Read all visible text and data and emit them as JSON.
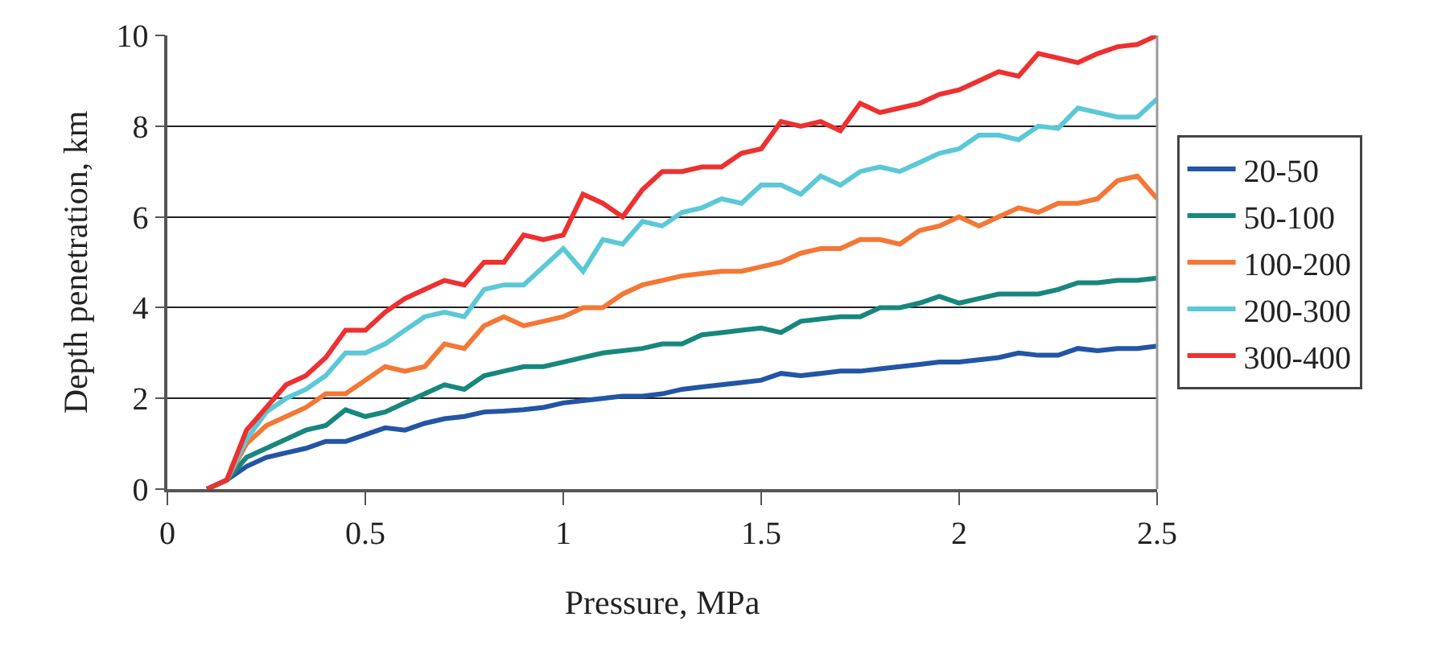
{
  "chart_data": {
    "type": "line",
    "xlabel": "Pressure, MPa",
    "ylabel": "Depth penetration, km",
    "x": [
      0.1,
      0.15,
      0.2,
      0.25,
      0.3,
      0.35,
      0.4,
      0.45,
      0.5,
      0.55,
      0.6,
      0.65,
      0.7,
      0.75,
      0.8,
      0.85,
      0.9,
      0.95,
      1.0,
      1.05,
      1.1,
      1.15,
      1.2,
      1.25,
      1.3,
      1.35,
      1.4,
      1.45,
      1.5,
      1.55,
      1.6,
      1.65,
      1.7,
      1.75,
      1.8,
      1.85,
      1.9,
      1.95,
      2.0,
      2.05,
      2.1,
      2.15,
      2.2,
      2.25,
      2.3,
      2.35,
      2.4,
      2.45,
      2.5
    ],
    "xlim": [
      0,
      2.5
    ],
    "xticks": [
      0,
      0.5,
      1,
      1.5,
      2,
      2.5
    ],
    "ylim": [
      0,
      10
    ],
    "yticks": [
      0,
      2,
      4,
      6,
      8,
      10
    ],
    "grid": "y",
    "legend": "right",
    "marker": "none",
    "line_style": "solid",
    "series": [
      {
        "name": "20-50",
        "color": "#2255a4",
        "values": [
          0,
          0.2,
          0.5,
          0.7,
          0.8,
          0.9,
          1.05,
          1.05,
          1.2,
          1.35,
          1.3,
          1.45,
          1.55,
          1.6,
          1.7,
          1.72,
          1.75,
          1.8,
          1.9,
          1.95,
          2.0,
          2.05,
          2.05,
          2.1,
          2.2,
          2.25,
          2.3,
          2.35,
          2.4,
          2.55,
          2.5,
          2.55,
          2.6,
          2.6,
          2.65,
          2.7,
          2.75,
          2.8,
          2.8,
          2.85,
          2.9,
          3.0,
          2.95,
          2.95,
          3.1,
          3.05,
          3.1,
          3.1,
          3.15
        ]
      },
      {
        "name": "50-100",
        "color": "#17877e",
        "values": [
          0,
          0.2,
          0.7,
          0.9,
          1.1,
          1.3,
          1.4,
          1.75,
          1.6,
          1.7,
          1.9,
          2.1,
          2.3,
          2.2,
          2.5,
          2.6,
          2.7,
          2.7,
          2.8,
          2.9,
          3.0,
          3.05,
          3.1,
          3.2,
          3.2,
          3.4,
          3.45,
          3.5,
          3.55,
          3.45,
          3.7,
          3.75,
          3.8,
          3.8,
          4.0,
          4.0,
          4.1,
          4.25,
          4.1,
          4.2,
          4.3,
          4.3,
          4.3,
          4.4,
          4.55,
          4.55,
          4.6,
          4.6,
          4.65
        ]
      },
      {
        "name": "100-200",
        "color": "#f47735",
        "values": [
          0,
          0.2,
          1.0,
          1.4,
          1.6,
          1.8,
          2.1,
          2.1,
          2.4,
          2.7,
          2.6,
          2.7,
          3.2,
          3.1,
          3.6,
          3.8,
          3.6,
          3.7,
          3.8,
          4.0,
          4.0,
          4.3,
          4.5,
          4.6,
          4.7,
          4.75,
          4.8,
          4.8,
          4.9,
          5.0,
          5.2,
          5.3,
          5.3,
          5.5,
          5.5,
          5.4,
          5.7,
          5.8,
          6.0,
          5.8,
          6.0,
          6.2,
          6.1,
          6.3,
          6.3,
          6.4,
          6.8,
          6.9,
          6.4
        ]
      },
      {
        "name": "200-300",
        "color": "#5bc8d8",
        "values": [
          0,
          0.2,
          1.1,
          1.7,
          2.0,
          2.2,
          2.5,
          3.0,
          3.0,
          3.2,
          3.5,
          3.8,
          3.9,
          3.8,
          4.4,
          4.5,
          4.5,
          4.9,
          5.3,
          4.8,
          5.5,
          5.4,
          5.9,
          5.8,
          6.1,
          6.2,
          6.4,
          6.3,
          6.7,
          6.7,
          6.5,
          6.9,
          6.7,
          7.0,
          7.1,
          7.0,
          7.2,
          7.4,
          7.5,
          7.8,
          7.8,
          7.7,
          8.0,
          7.95,
          8.4,
          8.3,
          8.2,
          8.2,
          8.6
        ]
      },
      {
        "name": "300-400",
        "color": "#ee3030",
        "values": [
          0,
          0.2,
          1.3,
          1.8,
          2.3,
          2.5,
          2.9,
          3.5,
          3.5,
          3.9,
          4.2,
          4.4,
          4.6,
          4.5,
          5.0,
          5.0,
          5.6,
          5.5,
          5.6,
          6.5,
          6.3,
          6.0,
          6.6,
          7.0,
          7.0,
          7.1,
          7.1,
          7.4,
          7.5,
          8.1,
          8.0,
          8.1,
          7.9,
          8.5,
          8.3,
          8.4,
          8.5,
          8.7,
          8.8,
          9.0,
          9.2,
          9.1,
          9.6,
          9.5,
          9.4,
          9.6,
          9.75,
          9.8,
          10.0
        ]
      }
    ]
  }
}
